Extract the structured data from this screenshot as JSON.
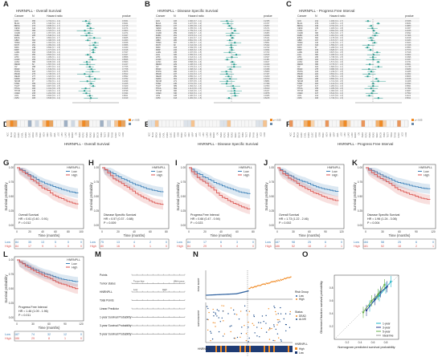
{
  "panel_labels": [
    "A",
    "B",
    "C",
    "D",
    "E",
    "F",
    "G",
    "H",
    "I",
    "J",
    "K",
    "L",
    "M",
    "N",
    "O"
  ],
  "forest_titles": [
    "HNRNPLL - Overall Survival",
    "HNRNPLL - Disease Specific Survival",
    "HNRNPLL - Progress Free Interval"
  ],
  "forest_headers": {
    "cancer": "Cancer",
    "n": "N",
    "hr": "Hazard ratio",
    "p": "pvalue"
  },
  "cancers": [
    "ACC",
    "BLCA",
    "BRCA",
    "CESC",
    "CHOL",
    "COAD",
    "DLBC",
    "ESCA",
    "GBM",
    "HNSC",
    "KICH",
    "KIRC",
    "KIRP",
    "LAML",
    "LGG",
    "LIHC",
    "LUAD",
    "LUSC",
    "MESO",
    "OV",
    "PAAD",
    "PCPG",
    "PRAD",
    "READ",
    "SARC",
    "SKCM",
    "STAD",
    "TGCT",
    "THCA",
    "THYM",
    "UCEC",
    "UCS",
    "UVM"
  ],
  "heat_titles": [
    "HNRNPLL - Overall Survival",
    "HNRNPLL - Disease Specific Survival",
    "HNRNPLL - Progress Free Interval"
  ],
  "heat_legend": [
    "p < 0.05",
    "risky",
    "protective",
    "p >= 0.05"
  ],
  "km_common": {
    "gene": "HNRNPLL",
    "low": "Low",
    "high": "High",
    "ylabel": "Survival probability",
    "xlabel": "Time (months)"
  },
  "km_panels": [
    {
      "id": "G",
      "endpoint": "Overall Survival",
      "hr": "HR = 0.61 (0.40 - 0.91)",
      "p": "P = 0.012",
      "xticks": [
        "0",
        "20",
        "40",
        "60",
        "80",
        "100"
      ],
      "risk_low": [
        "84",
        "35",
        "13",
        "5",
        "0",
        "0"
      ],
      "risk_high": [
        "84",
        "17",
        "9",
        "1",
        "0",
        "0"
      ]
    },
    {
      "id": "H",
      "endpoint": "Disease Specific Survival",
      "hr": "HR = 0.57 (0.37 - 0.88)",
      "p": "P = 0.009",
      "xticks": [
        "0",
        "20",
        "40",
        "60",
        "80"
      ],
      "risk_low": [
        "75",
        "13",
        "4",
        "2",
        "0"
      ],
      "risk_high": [
        "80",
        "16",
        "5",
        "1",
        "0"
      ]
    },
    {
      "id": "I",
      "endpoint": "Progress Free Interval",
      "hr": "HR = 0.66 (0.47 - 0.94)",
      "p": "P = 0.023",
      "xticks": [
        "0",
        "20",
        "40",
        "60",
        "80"
      ],
      "risk_low": [
        "84",
        "17",
        "6",
        "3",
        "0"
      ],
      "risk_high": [
        "84",
        "29",
        "9",
        "4",
        "0"
      ]
    },
    {
      "id": "J",
      "endpoint": "Overall Survival",
      "hr": "HR = 1.73 (1.22 - 2.46)",
      "p": "P = 0.002",
      "xticks": [
        "0",
        "30",
        "60",
        "90",
        "120"
      ],
      "risk_low": [
        "187",
        "98",
        "25",
        "6",
        "0"
      ],
      "risk_high": [
        "186",
        "52",
        "18",
        "2",
        "1"
      ]
    },
    {
      "id": "K",
      "endpoint": "Disease Specific Survival",
      "hr": "HR = 1.96 (1.24 - 3.08)",
      "p": "P = 0.004",
      "xticks": [
        "0",
        "30",
        "60",
        "90",
        "120"
      ],
      "risk_low": [
        "184",
        "58",
        "25",
        "6",
        "0"
      ],
      "risk_high": [
        "181",
        "52",
        "18",
        "2",
        "1"
      ]
    },
    {
      "id": "L",
      "endpoint": "Progress Free Interval",
      "hr": "HR = 1.46 (1.09 - 1.96)",
      "p": "P = 0.011",
      "xticks": [
        "0",
        "30",
        "60",
        "90",
        "120"
      ],
      "risk_low": [
        "187",
        "74",
        "32",
        "12",
        "0"
      ],
      "risk_high": [
        "186",
        "29",
        "8",
        "1",
        "0"
      ]
    }
  ],
  "nomogram": {
    "rows": [
      "Points",
      "Tumor status",
      "HNRNPLL",
      "Total Points",
      "Linear Predictor",
      "1-year Survival Probability",
      "3-year Survival Probability",
      "5-year Survival Probability"
    ],
    "tumor_levels": [
      "Tumor free",
      "With tumor"
    ],
    "gene_levels": [
      "Low",
      "High"
    ]
  },
  "riskplot": {
    "ylabel_top": "Risk score",
    "ylabel_mid": "Survival time",
    "legend_group_title": "Risk Group",
    "legend_low": "Low",
    "legend_high": "High",
    "status_title": "Status",
    "status_dead": "DEAD",
    "status_alive": "ALIVE",
    "gene": "HNRNPLL",
    "gene_high": "High",
    "gene_low": "Low"
  },
  "calibration": {
    "xlabel": "Nomogram predicted survival probability",
    "ylabel": "Observed fraction survival probability",
    "legend": [
      "1-year",
      "3-year",
      "5-year",
      "Ideal line"
    ],
    "ticks": [
      "0.2",
      "0.4",
      "0.6",
      "0.8"
    ]
  },
  "colors": {
    "low": "#3b7fb7",
    "high": "#d9534f",
    "teal": "#2a9d8f",
    "orange": "#f08a24"
  }
}
